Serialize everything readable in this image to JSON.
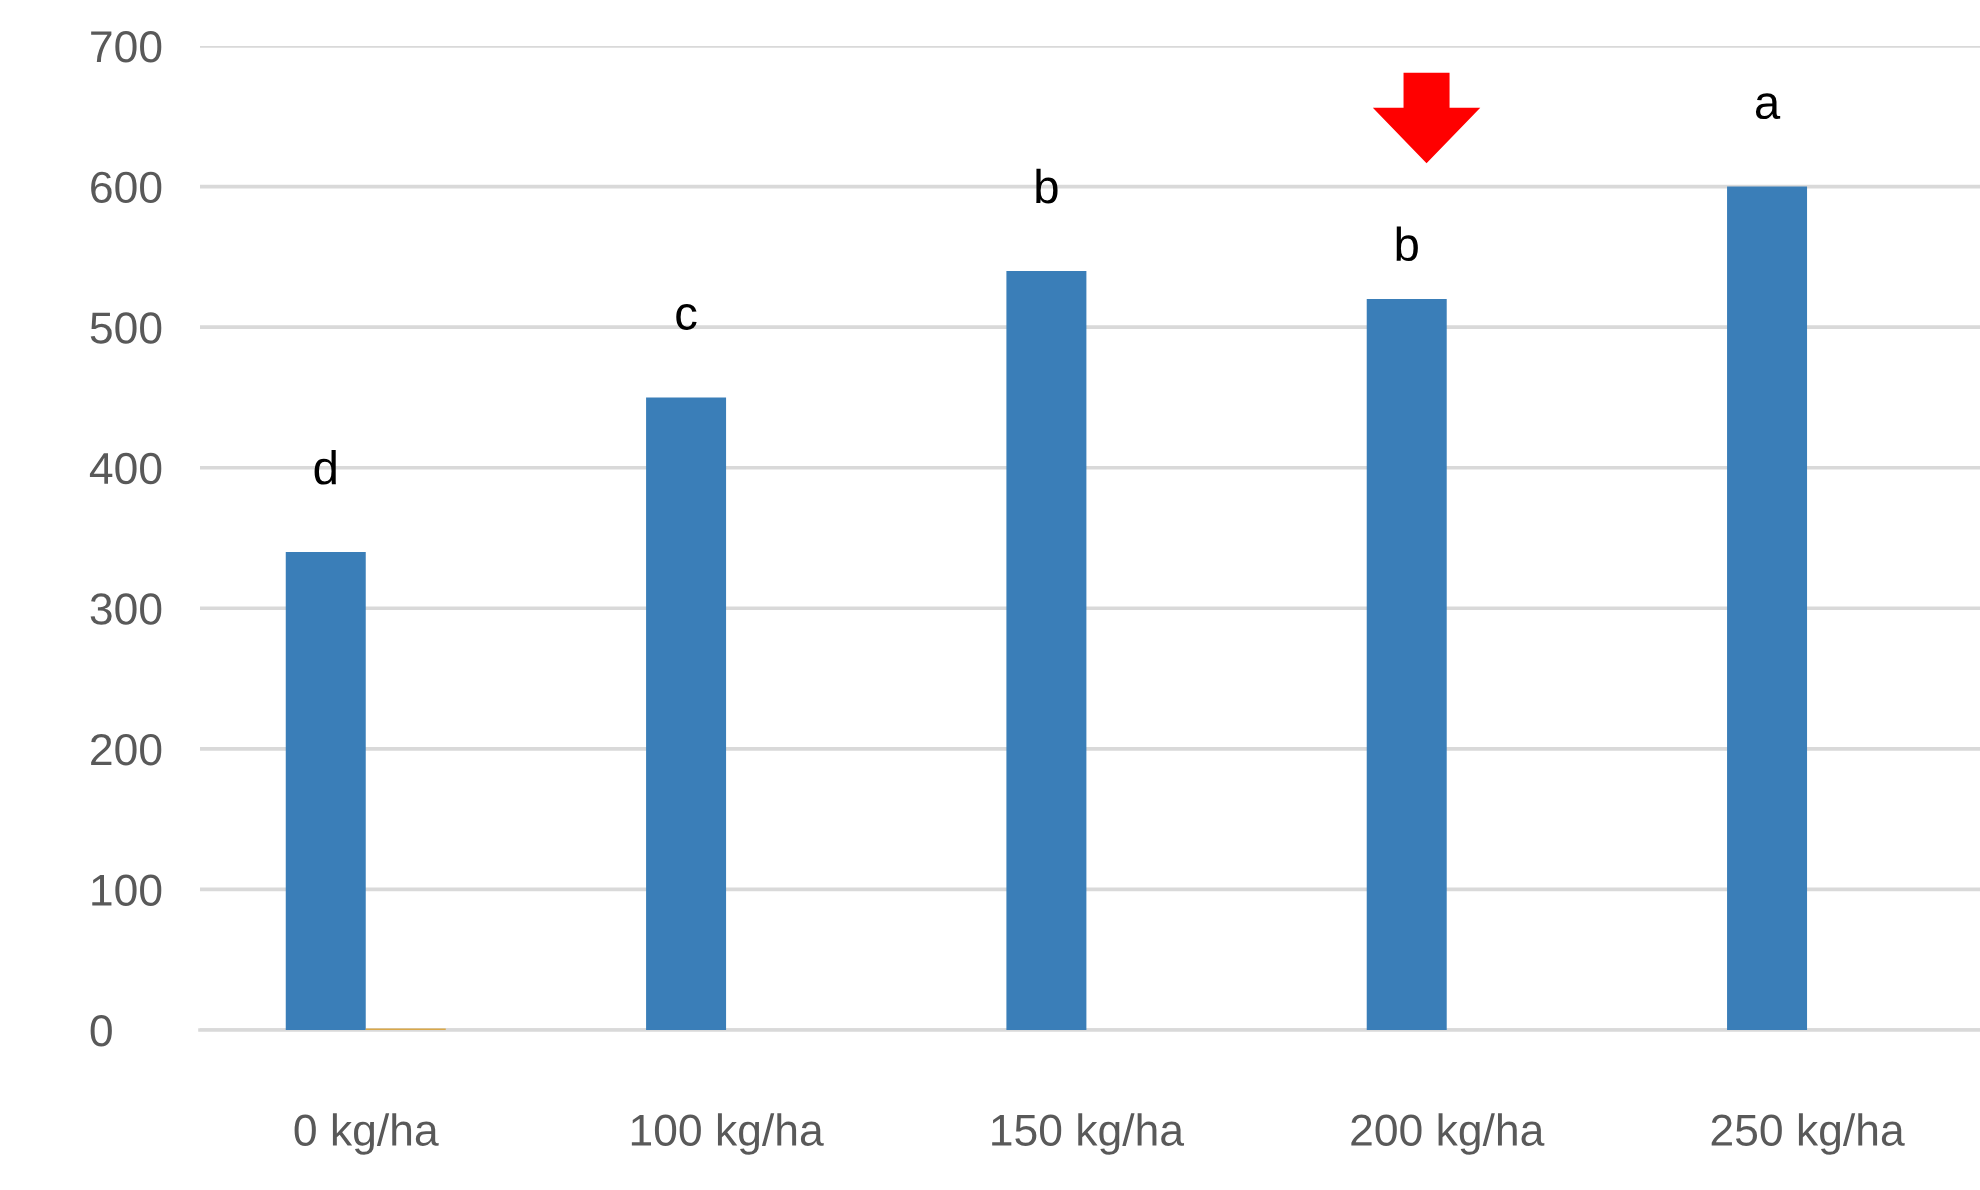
{
  "chart_data": {
    "type": "bar",
    "categories": [
      "0 kg/ha",
      "100 kg/ha",
      "150 kg/ha",
      "200 kg/ha",
      "250 kg/ha"
    ],
    "series": [
      {
        "color": "#3a7eb8",
        "values": [
          340,
          450,
          540,
          520,
          600
        ]
      },
      {
        "color": "#d9a84a",
        "values": [
          1,
          null,
          null,
          null,
          null
        ]
      }
    ],
    "ylim": [
      0,
      700
    ],
    "yticks": [
      0,
      100,
      200,
      300,
      400,
      500,
      600,
      700
    ],
    "grid": "y",
    "legend": false,
    "annotations": [
      "d",
      "c",
      "b",
      "b",
      "a"
    ]
  }
}
